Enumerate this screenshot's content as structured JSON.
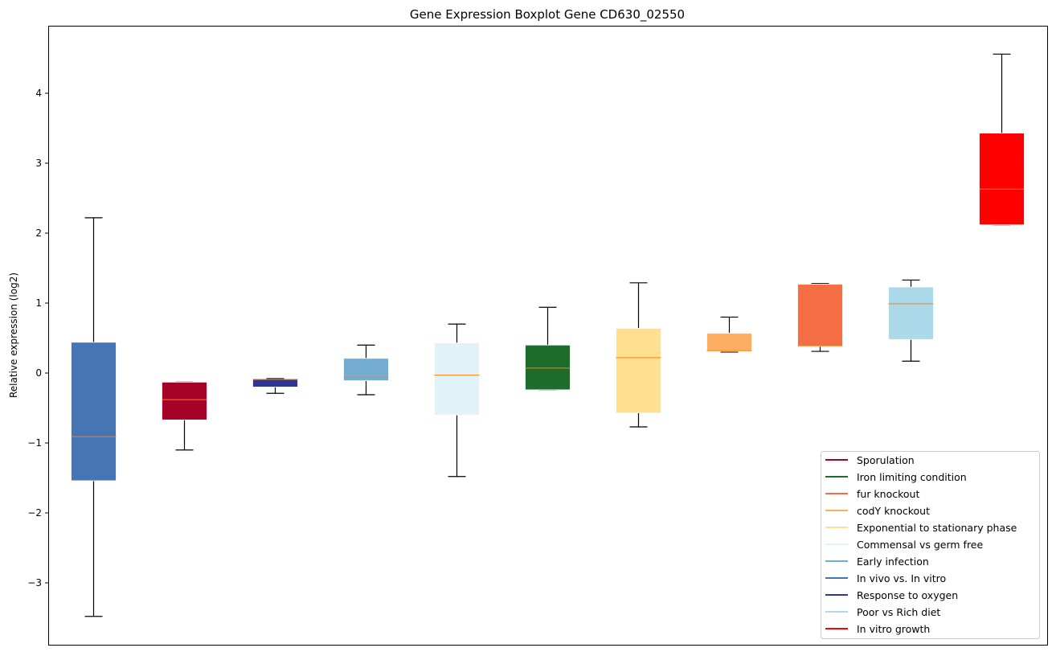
{
  "chart_data": {
    "type": "boxplot",
    "title": "Gene Expression Boxplot Gene CD630_02550",
    "xlabel": "",
    "ylabel": "Relative expression (log2)",
    "ylim": [
      -3.885,
      4.966
    ],
    "yticks": [
      -3,
      -2,
      -1,
      0,
      1,
      2,
      3,
      4
    ],
    "ytick_labels": [
      "−3",
      "−2",
      "−1",
      "0",
      "1",
      "2",
      "3",
      "4"
    ],
    "grid": false,
    "median_color": "#ff7f0e",
    "legend_position": "bottom-right",
    "series": [
      {
        "name": "In vivo vs. In vitro",
        "color": "#4575b4",
        "whisker_low": -3.48,
        "q1": -1.54,
        "median": -0.91,
        "q3": 0.44,
        "whisker_high": 2.22
      },
      {
        "name": "Sporulation",
        "color": "#a50026",
        "whisker_low": -1.1,
        "q1": -0.67,
        "median": -0.38,
        "q3": -0.13,
        "whisker_high": -0.13
      },
      {
        "name": "Response to oxygen",
        "color": "#313695",
        "whisker_low": -0.29,
        "q1": -0.2,
        "median": -0.09,
        "q3": -0.09,
        "whisker_high": -0.08
      },
      {
        "name": "Early infection",
        "color": "#74add1",
        "whisker_low": -0.31,
        "q1": -0.11,
        "median": -0.06,
        "q3": 0.21,
        "whisker_high": 0.4
      },
      {
        "name": "Commensal vs germ free",
        "color": "#e0f3f8",
        "whisker_low": -1.48,
        "q1": -0.6,
        "median": -0.03,
        "q3": 0.43,
        "whisker_high": 0.7
      },
      {
        "name": "Iron limiting condition",
        "color": "#1e6b2b",
        "whisker_low": -0.24,
        "q1": -0.24,
        "median": 0.07,
        "q3": 0.4,
        "whisker_high": 0.94
      },
      {
        "name": "Exponential to stationary phase",
        "color": "#fee090",
        "whisker_low": -0.77,
        "q1": -0.57,
        "median": 0.22,
        "q3": 0.64,
        "whisker_high": 1.29
      },
      {
        "name": "codY knockout",
        "color": "#fdae61",
        "whisker_low": 0.3,
        "q1": 0.31,
        "median": 0.32,
        "q3": 0.57,
        "whisker_high": 0.8
      },
      {
        "name": "fur knockout",
        "color": "#f46d43",
        "whisker_low": 0.31,
        "q1": 0.38,
        "median": 0.39,
        "q3": 1.27,
        "whisker_high": 1.28
      },
      {
        "name": "Poor vs Rich diet",
        "color": "#abd9e9",
        "whisker_low": 0.17,
        "q1": 0.48,
        "median": 0.99,
        "q3": 1.23,
        "whisker_high": 1.33
      },
      {
        "name": "In vitro growth",
        "color": "#ff0000",
        "whisker_low": 2.12,
        "q1": 2.12,
        "median": 2.63,
        "q3": 3.43,
        "whisker_high": 4.56
      }
    ],
    "legend": [
      {
        "label": "Sporulation",
        "color": "#a50026"
      },
      {
        "label": "Iron limiting condition",
        "color": "#1e6b2b"
      },
      {
        "label": "fur knockout",
        "color": "#f46d43"
      },
      {
        "label": "codY knockout",
        "color": "#fdae61"
      },
      {
        "label": "Exponential to stationary phase",
        "color": "#fee090"
      },
      {
        "label": "Commensal vs germ free",
        "color": "#e0f3f8"
      },
      {
        "label": "Early infection",
        "color": "#74add1"
      },
      {
        "label": "In vivo vs. In vitro",
        "color": "#4575b4"
      },
      {
        "label": "Response to oxygen",
        "color": "#313695"
      },
      {
        "label": "Poor vs Rich diet",
        "color": "#abd9e9"
      },
      {
        "label": "In vitro growth",
        "color": "#ff0000"
      }
    ]
  }
}
